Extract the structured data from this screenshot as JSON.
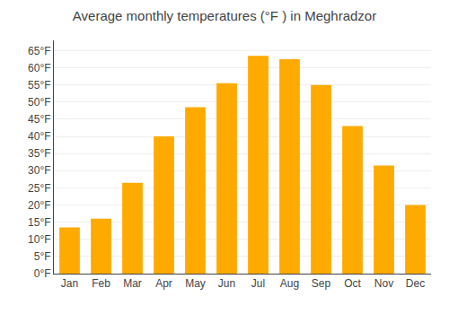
{
  "chart_data": {
    "type": "bar",
    "title": "Average monthly temperatures (°F ) in Meghradzor",
    "categories": [
      "Jan",
      "Feb",
      "Mar",
      "Apr",
      "May",
      "Jun",
      "Jul",
      "Aug",
      "Sep",
      "Oct",
      "Nov",
      "Dec"
    ],
    "values": [
      13.5,
      16.0,
      26.5,
      40.0,
      48.5,
      55.5,
      63.5,
      62.5,
      55.0,
      43.0,
      31.5,
      20.0
    ],
    "color": "#FFAA00",
    "ylim": [
      0,
      68
    ],
    "yticks": [
      {
        "value": 0,
        "label": "0°F"
      },
      {
        "value": 5,
        "label": "5°F"
      },
      {
        "value": 10,
        "label": "10°F"
      },
      {
        "value": 15,
        "label": "15°F"
      },
      {
        "value": 20,
        "label": "20°F"
      },
      {
        "value": 25,
        "label": "25°F"
      },
      {
        "value": 30,
        "label": "30°F"
      },
      {
        "value": 35,
        "label": "35°F"
      },
      {
        "value": 40,
        "label": "40°F"
      },
      {
        "value": 45,
        "label": "45°F"
      },
      {
        "value": 50,
        "label": "50°F"
      },
      {
        "value": 55,
        "label": "55°F"
      },
      {
        "value": 60,
        "label": "60°F"
      },
      {
        "value": 65,
        "label": "65°F"
      }
    ],
    "grid": true
  }
}
